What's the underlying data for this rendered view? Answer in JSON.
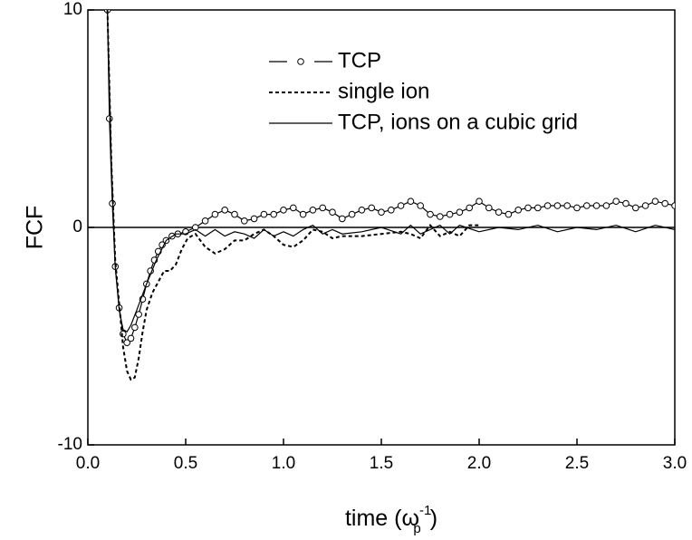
{
  "chart_data": {
    "type": "line",
    "y_label": "FCF",
    "x_label": {
      "main": "time (ω",
      "sub": "p",
      "sup": "-1",
      "close": ")"
    },
    "xlim": [
      0,
      3
    ],
    "ylim": [
      -10,
      10
    ],
    "xticks": [
      {
        "value": 0,
        "label": "0.0"
      },
      {
        "value": 0.5,
        "label": "0.5"
      },
      {
        "value": 1,
        "label": "1.0"
      },
      {
        "value": 1.5,
        "label": "1.5"
      },
      {
        "value": 2,
        "label": "2.0"
      },
      {
        "value": 2.5,
        "label": "2.5"
      },
      {
        "value": 3,
        "label": "3.0"
      }
    ],
    "yticks": [
      -10,
      0,
      10
    ],
    "hline": 0,
    "legend": "upper center",
    "series": [
      {
        "name": "TCP",
        "color": "#000000",
        "style": "dash-circle",
        "x": [
          0.1,
          0.11,
          0.125,
          0.14,
          0.16,
          0.18,
          0.2,
          0.22,
          0.24,
          0.26,
          0.28,
          0.3,
          0.32,
          0.34,
          0.36,
          0.38,
          0.4,
          0.43,
          0.46,
          0.5,
          0.55,
          0.6,
          0.65,
          0.7,
          0.75,
          0.8,
          0.85,
          0.9,
          0.95,
          1.0,
          1.05,
          1.1,
          1.15,
          1.2,
          1.25,
          1.3,
          1.35,
          1.4,
          1.45,
          1.5,
          1.55,
          1.6,
          1.65,
          1.7,
          1.75,
          1.8,
          1.85,
          1.9,
          1.95,
          2.0,
          2.05,
          2.1,
          2.15,
          2.2,
          2.25,
          2.3,
          2.35,
          2.4,
          2.45,
          2.5,
          2.55,
          2.6,
          2.65,
          2.7,
          2.75,
          2.8,
          2.85,
          2.9,
          2.95,
          3.0
        ],
        "values": [
          10,
          5,
          1.1,
          -1.8,
          -3.7,
          -4.9,
          -5.3,
          -5.1,
          -4.6,
          -4.0,
          -3.3,
          -2.6,
          -2.0,
          -1.5,
          -1.1,
          -0.8,
          -0.6,
          -0.4,
          -0.3,
          -0.2,
          0,
          0.3,
          0.6,
          0.8,
          0.6,
          0.3,
          0.4,
          0.6,
          0.6,
          0.8,
          0.9,
          0.6,
          0.8,
          0.9,
          0.7,
          0.4,
          0.6,
          0.8,
          0.9,
          0.7,
          0.8,
          1.0,
          1.2,
          1.0,
          0.6,
          0.5,
          0.6,
          0.7,
          0.9,
          1.2,
          0.9,
          0.7,
          0.6,
          0.8,
          0.9,
          0.9,
          1.0,
          1.0,
          1.0,
          0.9,
          1.0,
          1.0,
          1.0,
          1.2,
          1.1,
          0.9,
          1.0,
          1.2,
          1.1,
          1.0
        ]
      },
      {
        "name": "single ion",
        "color": "#000000",
        "style": "dashed",
        "x": [
          0.1,
          0.12,
          0.14,
          0.16,
          0.18,
          0.2,
          0.22,
          0.24,
          0.26,
          0.28,
          0.3,
          0.33,
          0.36,
          0.39,
          0.42,
          0.45,
          0.48,
          0.51,
          0.55,
          0.6,
          0.65,
          0.7,
          0.75,
          0.8,
          0.85,
          0.9,
          0.95,
          1.0,
          1.05,
          1.1,
          1.15,
          1.2,
          1.25,
          1.3,
          1.4,
          1.5,
          1.6,
          1.65,
          1.7,
          1.75,
          1.8,
          1.85,
          1.9,
          1.95,
          2.0
        ],
        "values": [
          10,
          3,
          -1.5,
          -3.5,
          -5.5,
          -6.6,
          -7.0,
          -6.9,
          -6.0,
          -4.8,
          -3.8,
          -3.0,
          -2.5,
          -2.0,
          -2.0,
          -1.7,
          -1.0,
          -0.5,
          -0.3,
          -0.9,
          -1.2,
          -1.0,
          -0.6,
          -0.6,
          -0.3,
          -0.1,
          -0.4,
          -0.8,
          -0.9,
          -0.6,
          -0.1,
          -0.2,
          -0.5,
          -0.4,
          -0.4,
          -0.3,
          -0.2,
          -0.3,
          -0.5,
          0.1,
          -0.4,
          -0.2,
          -0.4,
          0.1,
          0.1
        ]
      },
      {
        "name": "TCP, ions on a cubic grid",
        "color": "#000000",
        "style": "solid",
        "x": [
          0.1,
          0.12,
          0.14,
          0.16,
          0.18,
          0.2,
          0.22,
          0.25,
          0.3,
          0.35,
          0.4,
          0.45,
          0.5,
          0.55,
          0.6,
          0.65,
          0.7,
          0.75,
          0.8,
          0.85,
          0.9,
          0.95,
          1.0,
          1.05,
          1.1,
          1.15,
          1.2,
          1.25,
          1.3,
          1.4,
          1.5,
          1.6,
          1.65,
          1.7,
          1.8,
          1.85,
          1.9,
          2.0,
          2.1,
          2.2,
          2.3,
          2.4,
          2.5,
          2.6,
          2.7,
          2.8,
          2.9,
          3.0
        ],
        "values": [
          10,
          3,
          -1.8,
          -3.8,
          -4.7,
          -4.8,
          -4.5,
          -3.8,
          -2.6,
          -1.5,
          -0.6,
          -0.3,
          -0.3,
          -0.1,
          -0.4,
          -0.1,
          -0.4,
          -0.2,
          -0.3,
          -0.5,
          -0.1,
          -0.4,
          -0.2,
          -0.4,
          -0.1,
          0.1,
          -0.3,
          -0.1,
          -0.3,
          -0.2,
          0.0,
          -0.3,
          0.1,
          -0.3,
          0.1,
          -0.3,
          0.1,
          -0.2,
          0.0,
          -0.1,
          0.1,
          -0.2,
          0.0,
          -0.1,
          0.1,
          -0.2,
          0.1,
          -0.1
        ]
      }
    ]
  }
}
